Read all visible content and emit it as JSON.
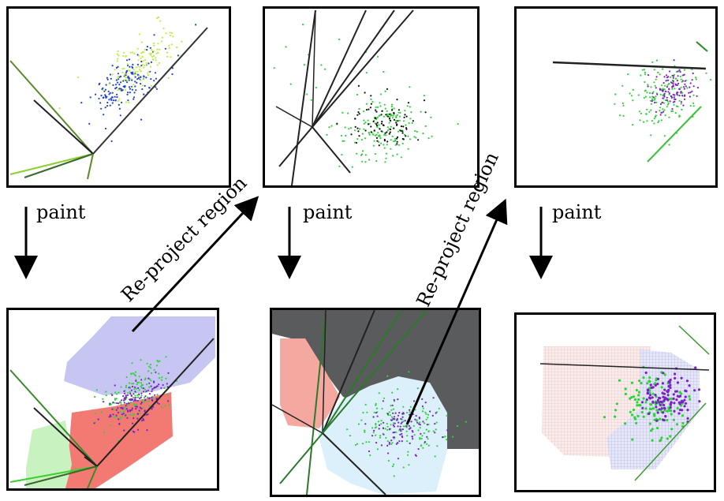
{
  "labels": {
    "paint": "paint",
    "reproject": "Re-project region"
  },
  "colors": {
    "blue": "#1f3fd6",
    "yellow_green": "#b8f03a",
    "green": "#2fd23a",
    "black": "#111111",
    "purple": "#7a22c8",
    "region_blue": "#c7c6f2",
    "region_red": "#f27a72",
    "region_green": "#c8f2c0",
    "region_dark": "#595b5c",
    "region_pink": "#f4a8a0",
    "region_lightblue": "#dcf0fb",
    "axis_green": "#3a9a2a"
  }
}
